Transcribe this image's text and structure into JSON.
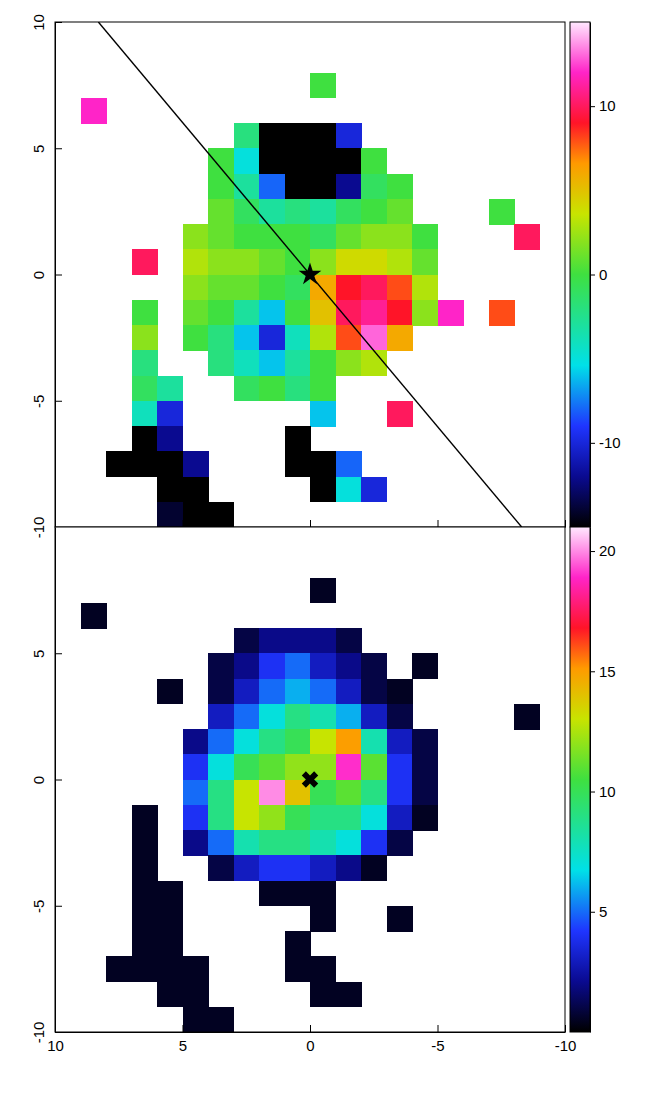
{
  "chart_data": [
    {
      "type": "heatmap",
      "x": [
        9.5,
        8.5,
        7.5,
        6.5,
        5.5,
        4.5,
        3.5,
        2.5,
        1.5,
        0.5,
        -0.5,
        -1.5,
        -2.5,
        -3.5,
        -4.5,
        -5.5,
        -6.5,
        -7.5,
        -8.5,
        -9.5
      ],
      "y": [
        9.5,
        8.5,
        7.5,
        6.5,
        5.5,
        4.5,
        3.5,
        2.5,
        1.5,
        0.5,
        -0.5,
        -1.5,
        -2.5,
        -3.5,
        -4.5,
        -5.5,
        -6.5,
        -7.5,
        -8.5,
        -9.5
      ],
      "values": [
        [
          null,
          null,
          null,
          null,
          null,
          null,
          null,
          null,
          null,
          null,
          null,
          null,
          null,
          null,
          null,
          null,
          null,
          null,
          null,
          null
        ],
        [
          null,
          null,
          null,
          null,
          null,
          null,
          null,
          null,
          null,
          null,
          null,
          null,
          null,
          null,
          null,
          null,
          null,
          null,
          null,
          null
        ],
        [
          null,
          null,
          null,
          null,
          null,
          null,
          null,
          null,
          null,
          null,
          0,
          null,
          null,
          null,
          null,
          null,
          null,
          null,
          null,
          null
        ],
        [
          null,
          12,
          null,
          null,
          null,
          null,
          null,
          null,
          null,
          null,
          null,
          null,
          null,
          null,
          null,
          null,
          null,
          null,
          null,
          null
        ],
        [
          null,
          null,
          null,
          null,
          null,
          null,
          null,
          -2,
          -16,
          -16,
          -16,
          -10,
          null,
          null,
          null,
          null,
          null,
          null,
          null,
          null
        ],
        [
          null,
          null,
          null,
          null,
          null,
          null,
          0,
          -5,
          -16,
          -16,
          -16,
          -16,
          0,
          null,
          null,
          null,
          null,
          null,
          null,
          null
        ],
        [
          null,
          null,
          null,
          null,
          null,
          null,
          0,
          -3,
          -8,
          -16,
          -16,
          -12,
          -1,
          0,
          null,
          null,
          null,
          null,
          null,
          null
        ],
        [
          null,
          null,
          null,
          null,
          null,
          null,
          1,
          -1,
          -3,
          -2,
          -3,
          -1,
          0,
          1,
          null,
          null,
          null,
          0,
          null,
          null
        ],
        [
          null,
          null,
          null,
          null,
          null,
          2,
          1,
          0,
          0,
          0,
          -1,
          1,
          2,
          2,
          0,
          null,
          null,
          null,
          10,
          null
        ],
        [
          null,
          null,
          null,
          10,
          null,
          3,
          2,
          2,
          1,
          0,
          2,
          4,
          4,
          3,
          1,
          null,
          null,
          null,
          null,
          null
        ],
        [
          null,
          null,
          null,
          null,
          null,
          2,
          1,
          1,
          0,
          -1,
          6,
          9,
          10,
          8,
          3,
          null,
          null,
          null,
          null,
          null
        ],
        [
          null,
          null,
          null,
          0,
          null,
          1,
          0,
          -3,
          -6,
          0,
          5,
          10,
          11,
          9,
          2,
          12,
          null,
          8,
          null,
          null
        ],
        [
          null,
          null,
          null,
          2,
          null,
          0,
          -2,
          -6,
          -10,
          -4,
          3,
          8,
          13,
          6,
          null,
          null,
          null,
          null,
          null,
          null
        ],
        [
          null,
          null,
          null,
          -2,
          null,
          null,
          -2,
          -4,
          -6,
          -3,
          0,
          2,
          3,
          null,
          null,
          null,
          null,
          null,
          null,
          null
        ],
        [
          null,
          null,
          null,
          -1,
          -3,
          null,
          null,
          -1,
          0,
          -2,
          0,
          null,
          null,
          null,
          null,
          null,
          null,
          null,
          null,
          null
        ],
        [
          null,
          null,
          null,
          -4,
          -10,
          null,
          null,
          null,
          null,
          null,
          -6,
          null,
          null,
          10,
          null,
          null,
          null,
          null,
          null,
          null
        ],
        [
          null,
          null,
          null,
          -16,
          -12,
          null,
          null,
          null,
          null,
          -16,
          null,
          null,
          null,
          null,
          null,
          null,
          null,
          null,
          null,
          null
        ],
        [
          null,
          null,
          -16,
          -16,
          -16,
          -12,
          null,
          null,
          null,
          -16,
          -16,
          -8,
          null,
          null,
          null,
          null,
          null,
          null,
          null,
          null
        ],
        [
          null,
          null,
          null,
          null,
          -16,
          -16,
          null,
          null,
          null,
          null,
          -16,
          -5,
          -10,
          null,
          null,
          null,
          null,
          null,
          null,
          null
        ],
        [
          null,
          null,
          null,
          null,
          -14,
          -16,
          -16,
          null,
          null,
          null,
          null,
          null,
          null,
          null,
          null,
          null,
          null,
          null,
          null,
          null
        ]
      ],
      "xlim": [
        10,
        -10
      ],
      "ylim": [
        -10,
        10
      ],
      "xticks": [
        10,
        5,
        0,
        -5,
        -10
      ],
      "yticks": [
        -10,
        -5,
        0,
        5,
        10
      ],
      "tick_labels": "y",
      "colorbar_lim": [
        -15,
        15
      ],
      "colorbar_ticks": [
        -10,
        0,
        10
      ],
      "center": {
        "x": 0,
        "y": 0
      },
      "marker": "star",
      "line": {
        "x": [
          8.3,
          -8.3
        ],
        "y": [
          10,
          -10
        ]
      }
    },
    {
      "type": "heatmap",
      "x": [
        9.5,
        8.5,
        7.5,
        6.5,
        5.5,
        4.5,
        3.5,
        2.5,
        1.5,
        0.5,
        -0.5,
        -1.5,
        -2.5,
        -3.5,
        -4.5,
        -5.5,
        -6.5,
        -7.5,
        -8.5,
        -9.5
      ],
      "y": [
        9.5,
        8.5,
        7.5,
        6.5,
        5.5,
        4.5,
        3.5,
        2.5,
        1.5,
        0.5,
        -0.5,
        -1.5,
        -2.5,
        -3.5,
        -4.5,
        -5.5,
        -6.5,
        -7.5,
        -8.5,
        -9.5
      ],
      "values": [
        [
          null,
          null,
          null,
          null,
          null,
          null,
          null,
          null,
          null,
          null,
          null,
          null,
          null,
          null,
          null,
          null,
          null,
          null,
          null,
          null
        ],
        [
          null,
          null,
          null,
          null,
          null,
          null,
          null,
          null,
          null,
          null,
          null,
          null,
          null,
          null,
          null,
          null,
          null,
          null,
          null,
          null
        ],
        [
          null,
          null,
          null,
          null,
          null,
          null,
          null,
          null,
          null,
          null,
          0.5,
          null,
          null,
          null,
          null,
          null,
          null,
          null,
          null,
          null
        ],
        [
          null,
          0.5,
          null,
          null,
          null,
          null,
          null,
          null,
          null,
          null,
          null,
          null,
          null,
          null,
          null,
          null,
          null,
          null,
          null,
          null
        ],
        [
          null,
          null,
          null,
          null,
          null,
          null,
          null,
          1,
          2,
          2,
          2,
          1,
          null,
          null,
          null,
          null,
          null,
          null,
          null,
          null
        ],
        [
          null,
          null,
          null,
          null,
          null,
          null,
          1,
          2,
          4,
          5,
          3,
          2,
          1,
          null,
          0.5,
          null,
          null,
          null,
          null,
          null
        ],
        [
          null,
          null,
          null,
          null,
          0.5,
          null,
          1,
          3,
          5,
          6,
          5,
          3,
          1,
          0.5,
          null,
          null,
          null,
          null,
          null,
          null
        ],
        [
          null,
          null,
          null,
          null,
          null,
          null,
          3,
          5,
          7,
          9,
          8,
          6,
          3,
          1,
          null,
          null,
          null,
          null,
          0.5,
          null
        ],
        [
          null,
          null,
          null,
          null,
          null,
          2,
          5,
          7,
          9,
          10,
          13,
          15,
          8,
          3,
          1,
          null,
          null,
          null,
          null,
          null
        ],
        [
          null,
          null,
          null,
          null,
          null,
          4,
          7,
          10,
          11,
          12,
          12,
          19,
          11,
          4,
          1,
          null,
          null,
          null,
          null,
          null
        ],
        [
          null,
          null,
          null,
          null,
          null,
          5,
          9,
          13,
          20,
          14,
          10,
          11,
          9,
          4,
          1,
          null,
          null,
          null,
          null,
          null
        ],
        [
          null,
          null,
          null,
          0.5,
          null,
          4,
          9,
          13,
          12,
          10,
          9,
          9,
          7,
          3,
          0.5,
          null,
          null,
          null,
          null,
          null
        ],
        [
          null,
          null,
          null,
          0.5,
          null,
          2,
          5,
          8,
          9,
          9,
          8,
          7,
          4,
          1,
          null,
          null,
          null,
          null,
          null,
          null
        ],
        [
          null,
          null,
          null,
          0.5,
          null,
          null,
          1,
          3,
          4,
          4,
          3,
          2,
          0.5,
          null,
          null,
          null,
          null,
          null,
          null,
          null
        ],
        [
          null,
          null,
          null,
          0.5,
          0.5,
          null,
          null,
          null,
          0.5,
          0.5,
          0.5,
          null,
          null,
          null,
          null,
          null,
          null,
          null,
          null,
          null
        ],
        [
          null,
          null,
          null,
          0.5,
          0.5,
          null,
          null,
          null,
          null,
          null,
          0.5,
          null,
          null,
          0.5,
          null,
          null,
          null,
          null,
          null,
          null
        ],
        [
          null,
          null,
          null,
          0.5,
          0.5,
          null,
          null,
          null,
          null,
          0.5,
          null,
          null,
          null,
          null,
          null,
          null,
          null,
          null,
          null,
          null
        ],
        [
          null,
          null,
          0.5,
          0.5,
          0.5,
          0.5,
          null,
          null,
          null,
          0.5,
          0.5,
          null,
          null,
          null,
          null,
          null,
          null,
          null,
          null,
          null
        ],
        [
          null,
          null,
          null,
          null,
          0.5,
          0.5,
          null,
          null,
          null,
          null,
          0.5,
          0.5,
          null,
          null,
          null,
          null,
          null,
          null,
          null,
          null
        ],
        [
          null,
          null,
          null,
          null,
          null,
          0.5,
          0.5,
          null,
          null,
          null,
          null,
          null,
          null,
          null,
          null,
          null,
          null,
          null,
          null,
          null
        ]
      ],
      "xlim": [
        10,
        -10
      ],
      "ylim": [
        -10,
        10
      ],
      "xticks": [
        10,
        5,
        0,
        -5,
        -10
      ],
      "yticks": [
        -10,
        -5,
        0,
        5
      ],
      "colorbar_lim": [
        0,
        21
      ],
      "colorbar_ticks": [
        5,
        10,
        15,
        20
      ],
      "center": {
        "x": 0,
        "y": 0
      },
      "marker": "x"
    }
  ]
}
